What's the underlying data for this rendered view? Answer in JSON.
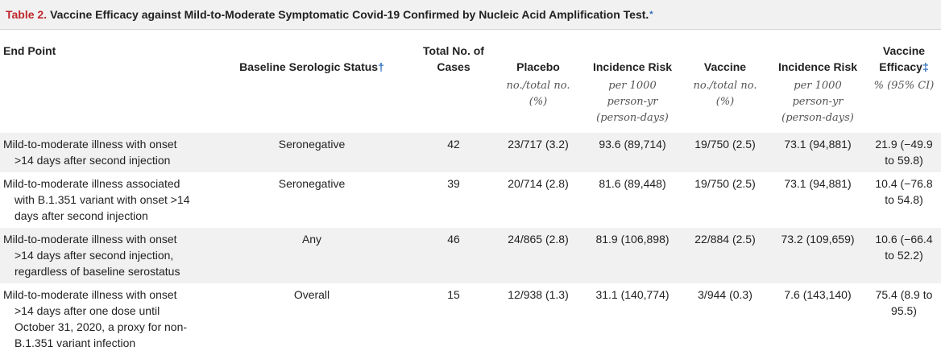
{
  "title": {
    "label": "Table 2.",
    "text": "Vaccine Efficacy against Mild-to-Moderate Symptomatic Covid-19 Confirmed by Nucleic Acid Amplification Test.",
    "mark": "*"
  },
  "headers": {
    "end_point": "End Point",
    "serostatus": "Baseline Serologic Status",
    "serostatus_mark": "†",
    "total_cases_1": "Total No. of",
    "total_cases_2": "Cases",
    "placebo": "Placebo",
    "incidence_placebo": "Incidence Risk",
    "vaccine": "Vaccine",
    "incidence_vaccine": "Incidence Risk",
    "efficacy_1": "Vaccine",
    "efficacy_2": "Efficacy",
    "efficacy_mark": "‡"
  },
  "subheaders": {
    "placebo_1": "no./total no.",
    "placebo_2": "(%)",
    "incidence_placebo_1": "per 1000",
    "incidence_placebo_2": "person-yr",
    "incidence_placebo_3": "(person-days)",
    "vaccine_1": "no./total no.",
    "vaccine_2": "(%)",
    "incidence_vaccine_1": "per 1000",
    "incidence_vaccine_2": "person-yr",
    "incidence_vaccine_3": "(person-days)",
    "efficacy": "% (95% CI)"
  },
  "rows": [
    {
      "endpoint": [
        "Mild-to-moderate illness with onset",
        ">14 days after second injection"
      ],
      "serostatus": "Seronegative",
      "total": "42",
      "placebo": "23/717 (3.2)",
      "incidence_placebo": "93.6 (89,714)",
      "vaccine": "19/750 (2.5)",
      "incidence_vaccine": "73.1 (94,881)",
      "efficacy": [
        "21.9 (−49.9",
        "to 59.8)"
      ]
    },
    {
      "endpoint": [
        "Mild-to-moderate illness associated",
        "with B.1.351 variant with onset >14",
        "days after second injection"
      ],
      "serostatus": "Seronegative",
      "total": "39",
      "placebo": "20/714 (2.8)",
      "incidence_placebo": "81.6 (89,448)",
      "vaccine": "19/750 (2.5)",
      "incidence_vaccine": "73.1 (94,881)",
      "efficacy": [
        "10.4 (−76.8",
        "to 54.8)"
      ]
    },
    {
      "endpoint": [
        "Mild-to-moderate illness with onset",
        ">14 days after second injection,",
        "regardless of baseline serostatus"
      ],
      "serostatus": "Any",
      "total": "46",
      "placebo": "24/865 (2.8)",
      "incidence_placebo": "81.9 (106,898)",
      "vaccine": "22/884 (2.5)",
      "incidence_vaccine": "73.2 (109,659)",
      "efficacy": [
        "10.6 (−66.4",
        "to 52.2)"
      ]
    },
    {
      "endpoint": [
        "Mild-to-moderate illness with onset",
        ">14 days after one dose until",
        "October 31, 2020, a proxy for non-",
        "B.1.351 variant infection"
      ],
      "serostatus": "Overall",
      "total": "15",
      "placebo": "12/938 (1.3)",
      "incidence_placebo": "31.1 (140,774)",
      "vaccine": "3/944 (0.3)",
      "incidence_vaccine": "7.6 (143,140)",
      "efficacy": [
        "75.4 (8.9 to",
        "95.5)"
      ]
    }
  ],
  "colors": {
    "label_red": "#c0282d",
    "mark_blue": "#2a6ebb",
    "stripe_gray": "#f1f1f1"
  }
}
